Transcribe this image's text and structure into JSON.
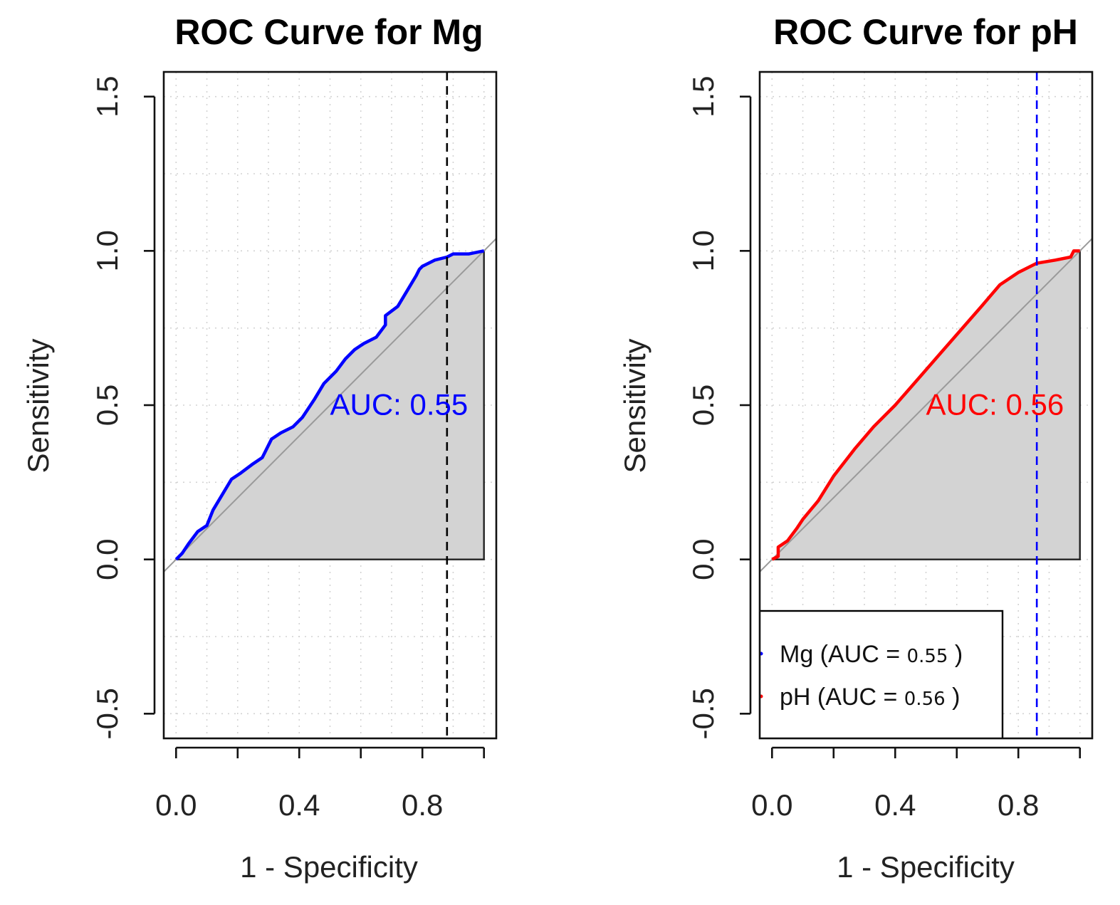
{
  "chart_data": [
    {
      "type": "line",
      "title": "ROC Curve for Mg",
      "xlabel": "1 - Specificity",
      "ylabel": "Sensitivity",
      "xlim": [
        -0.04,
        1.04
      ],
      "ylim": [
        -0.58,
        1.58
      ],
      "xticks": [
        0.0,
        0.2,
        0.4,
        0.6,
        0.8,
        1.0
      ],
      "xtick_labels": [
        "0.0",
        "",
        "0.4",
        "",
        "0.8",
        ""
      ],
      "yticks": [
        -0.5,
        0.0,
        0.5,
        1.0,
        1.5
      ],
      "ytick_labels": [
        "-0.5",
        "0.0",
        "0.5",
        "1.0",
        "1.5"
      ],
      "grid": true,
      "auc_label": "AUC: 0.55",
      "auc_label_pos": [
        0.5,
        0.45
      ],
      "series_color": "#0000ff",
      "cutoff_x": 0.88,
      "cutoff_color": "#000000",
      "series": [
        {
          "name": "Mg",
          "x": [
            0.0,
            0.02,
            0.04,
            0.07,
            0.1,
            0.12,
            0.15,
            0.18,
            0.21,
            0.25,
            0.28,
            0.31,
            0.34,
            0.38,
            0.41,
            0.45,
            0.48,
            0.52,
            0.55,
            0.58,
            0.61,
            0.65,
            0.68,
            0.68,
            0.72,
            0.75,
            0.78,
            0.79,
            0.8,
            0.84,
            0.88,
            0.9,
            0.95,
            1.0
          ],
          "y": [
            0.0,
            0.02,
            0.05,
            0.09,
            0.11,
            0.16,
            0.21,
            0.26,
            0.28,
            0.31,
            0.33,
            0.39,
            0.41,
            0.43,
            0.46,
            0.52,
            0.57,
            0.61,
            0.65,
            0.68,
            0.7,
            0.72,
            0.76,
            0.79,
            0.82,
            0.87,
            0.92,
            0.94,
            0.95,
            0.97,
            0.98,
            0.99,
            0.99,
            1.0
          ]
        }
      ]
    },
    {
      "type": "line",
      "title": "ROC Curve for pH",
      "xlabel": "1 - Specificity",
      "ylabel": "Sensitivity",
      "xlim": [
        -0.04,
        1.04
      ],
      "ylim": [
        -0.58,
        1.58
      ],
      "xticks": [
        0.0,
        0.2,
        0.4,
        0.6,
        0.8,
        1.0
      ],
      "xtick_labels": [
        "0.0",
        "",
        "0.4",
        "",
        "0.8",
        ""
      ],
      "yticks": [
        -0.5,
        0.0,
        0.5,
        1.0,
        1.5
      ],
      "ytick_labels": [
        "-0.5",
        "0.0",
        "0.5",
        "1.0",
        "1.5"
      ],
      "grid": true,
      "auc_label": "AUC: 0.56",
      "auc_label_pos": [
        0.5,
        0.45
      ],
      "series_color": "#ff0000",
      "cutoff_x": 0.86,
      "cutoff_color": "#0000ff",
      "series": [
        {
          "name": "pH",
          "x": [
            0.0,
            0.02,
            0.02,
            0.05,
            0.08,
            0.1,
            0.15,
            0.2,
            0.27,
            0.33,
            0.4,
            0.47,
            0.54,
            0.61,
            0.68,
            0.74,
            0.8,
            0.86,
            0.92,
            0.97,
            0.98,
            1.0
          ],
          "y": [
            0.0,
            0.01,
            0.04,
            0.06,
            0.1,
            0.13,
            0.19,
            0.27,
            0.36,
            0.43,
            0.5,
            0.58,
            0.66,
            0.74,
            0.82,
            0.89,
            0.93,
            0.96,
            0.97,
            0.98,
            1.0,
            1.0
          ]
        }
      ],
      "legend": {
        "placement": "bottom-left",
        "entries": [
          {
            "label": "Mg (AUC = ",
            "value": "0.55",
            "suffix": " )",
            "color": "#0000ff"
          },
          {
            "label": "pH (AUC = ",
            "value": "0.56",
            "suffix": " )",
            "color": "#ff0000"
          }
        ]
      }
    }
  ]
}
